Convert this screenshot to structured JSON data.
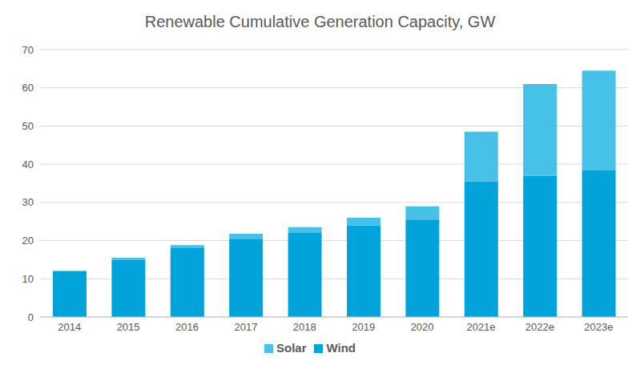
{
  "chart_data": {
    "type": "bar",
    "title": "Renewable Cumulative Generation Capacity, GW",
    "categories": [
      "2014",
      "2015",
      "2016",
      "2017",
      "2018",
      "2019",
      "2020",
      "2021e",
      "2022e",
      "2023e"
    ],
    "series": [
      {
        "name": "Wind",
        "color": "#00a3da",
        "values": [
          12,
          15,
          18,
          20.5,
          22,
          24,
          25.5,
          35.5,
          37,
          38.5
        ]
      },
      {
        "name": "Solar",
        "color": "#47c1e8",
        "values": [
          0.1,
          0.5,
          0.8,
          1.3,
          1.5,
          2,
          3.5,
          13,
          24,
          26
        ]
      }
    ],
    "ylim": [
      0,
      70
    ],
    "yticks": [
      0,
      10,
      20,
      30,
      40,
      50,
      60,
      70
    ],
    "stacked": true,
    "grid": true,
    "legend": "bottom"
  }
}
